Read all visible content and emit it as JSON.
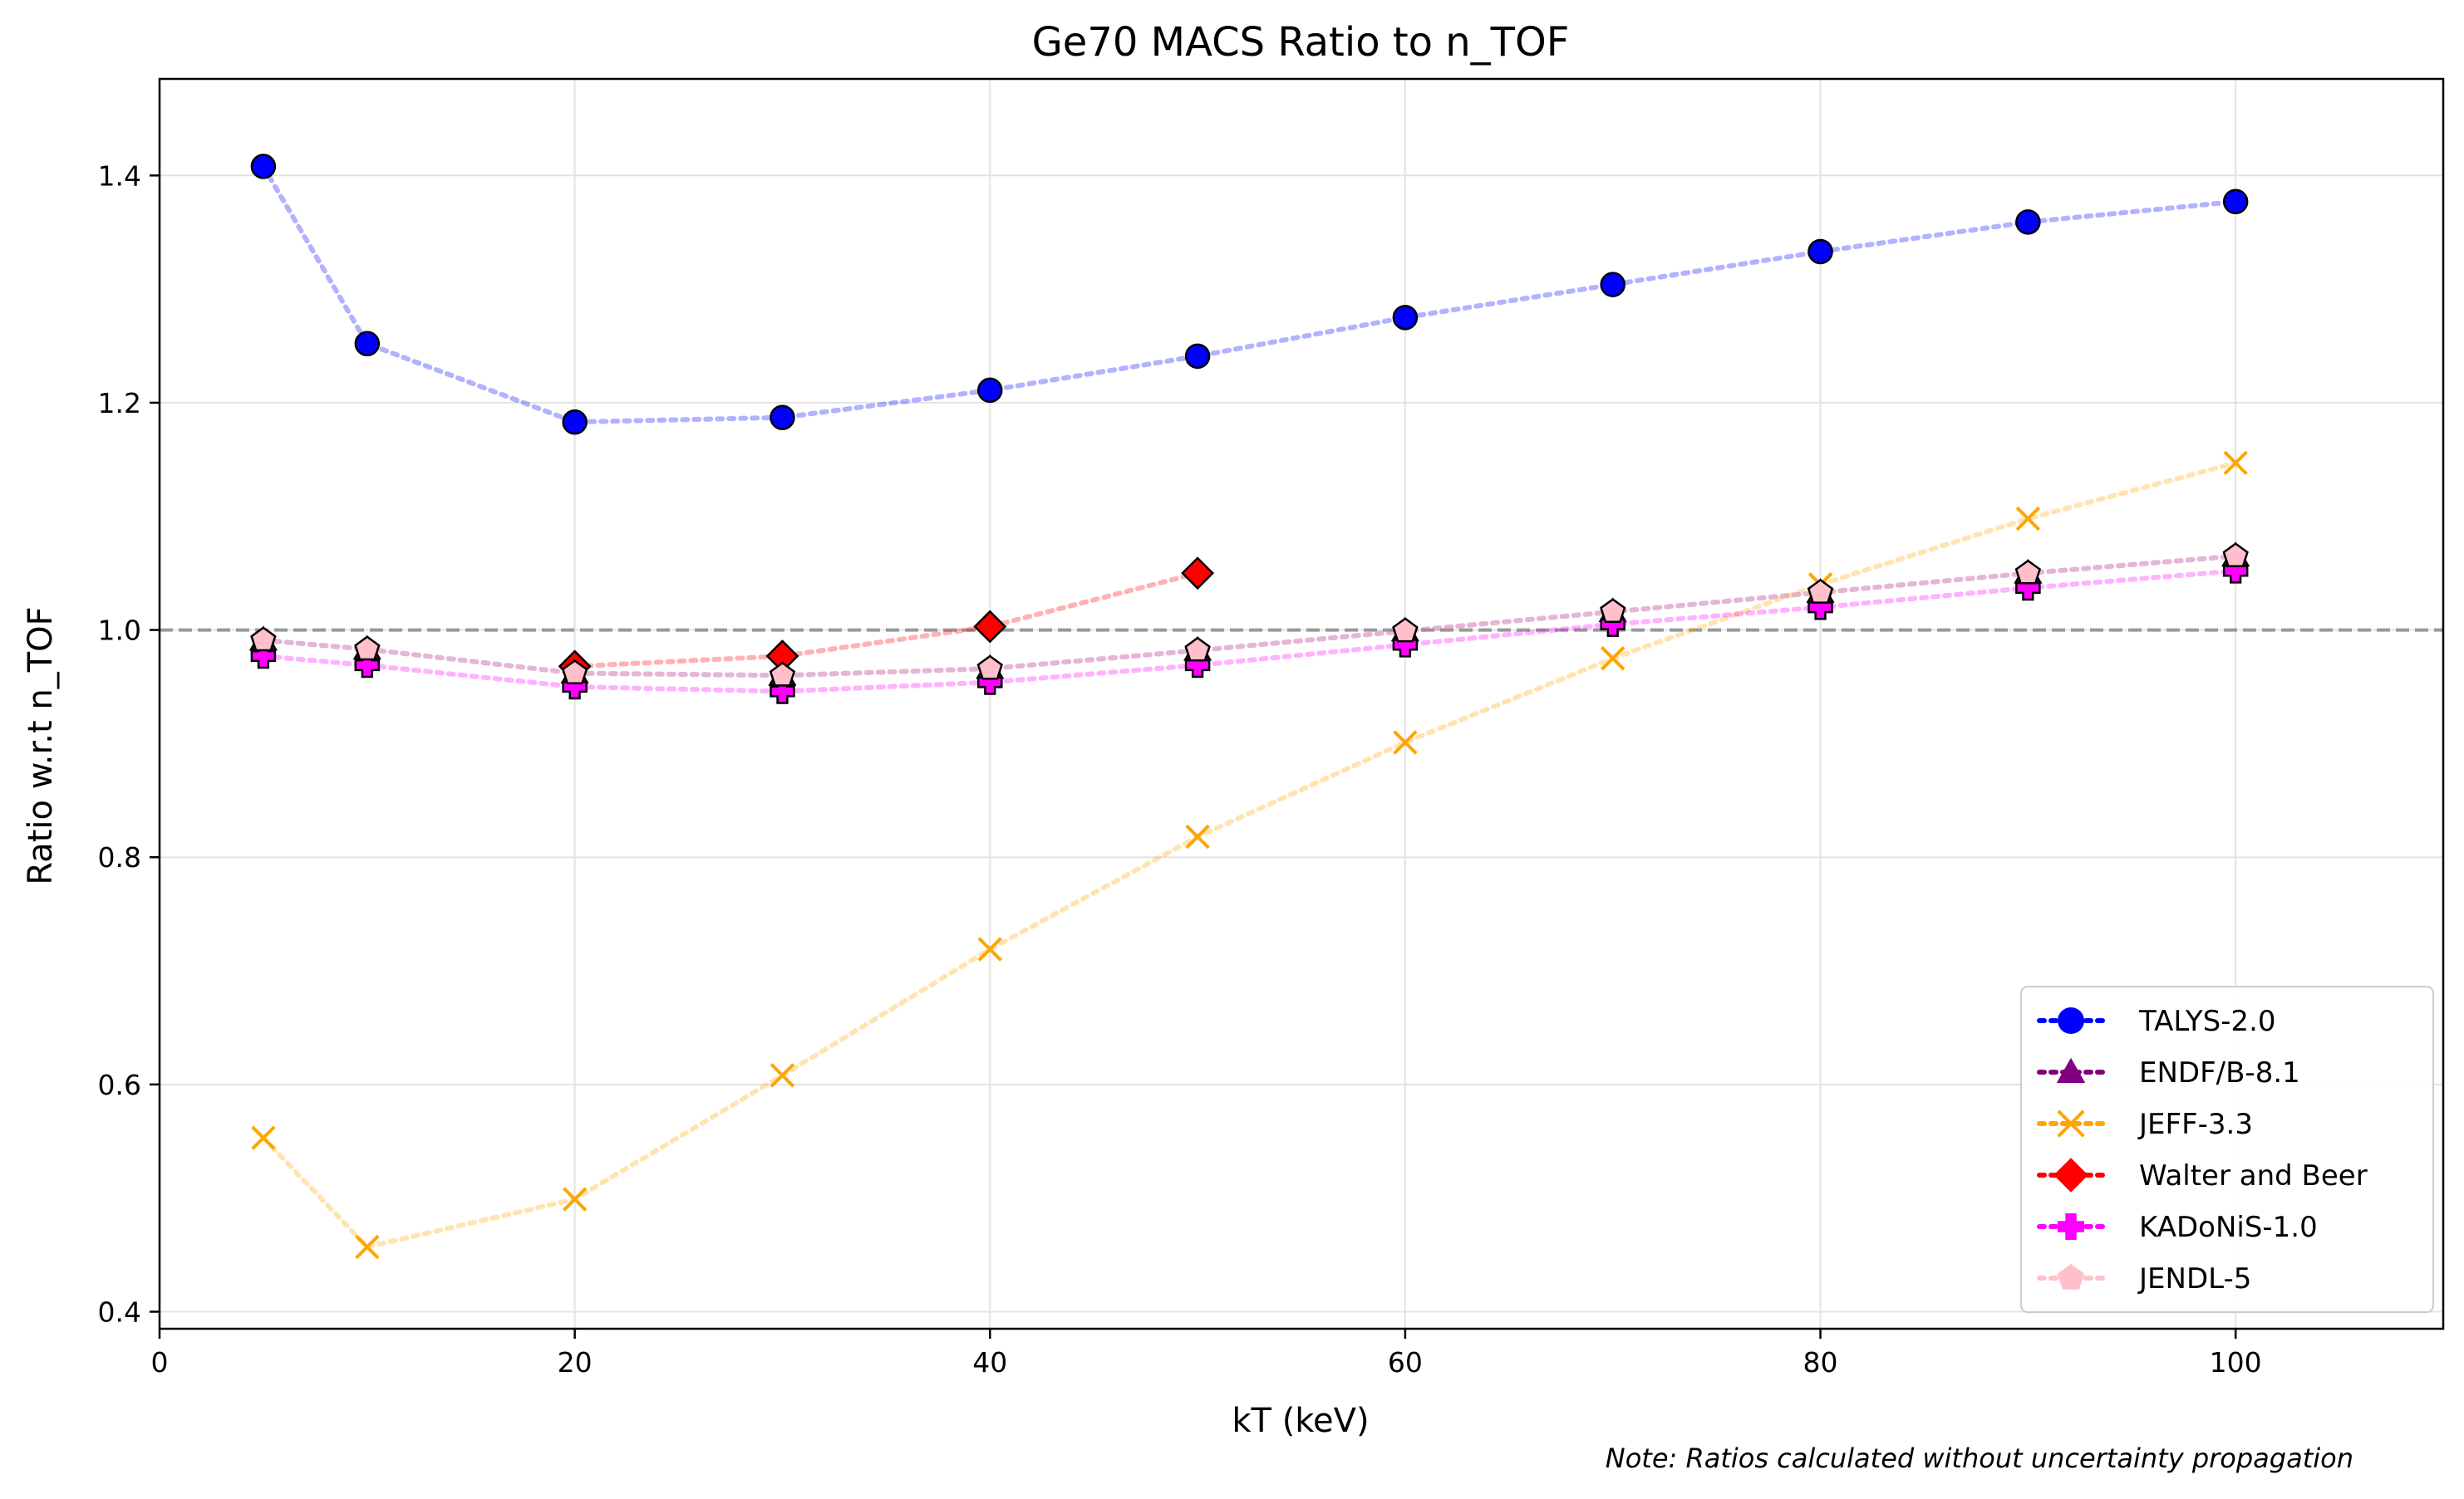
{
  "chart_data": {
    "type": "line",
    "title": "Ge70 MACS Ratio to n_TOF",
    "xlabel": "kT (keV)",
    "ylabel": "Ratio w.r.t n_TOF",
    "xlim": [
      0,
      110
    ],
    "ylim": [
      0.385,
      1.485
    ],
    "xticks": [
      0,
      20,
      40,
      60,
      80,
      100
    ],
    "xtick_labels": [
      "0",
      "20",
      "40",
      "60",
      "80",
      "100"
    ],
    "yticks": [
      0.4,
      0.6,
      0.8,
      1.0,
      1.2,
      1.4
    ],
    "ytick_labels": [
      "0.4",
      "0.6",
      "0.8",
      "1.0",
      "1.2",
      "1.4"
    ],
    "grid": true,
    "reference_line": 1.0,
    "legend_position": "lower-right",
    "note": "Note: Ratios calculated without uncertainty propagation",
    "series": [
      {
        "name": "TALYS-2.0",
        "marker": "circle",
        "color": "#0000ff",
        "x": [
          5,
          10,
          20,
          30,
          40,
          50,
          60,
          70,
          80,
          90,
          100
        ],
        "y": [
          1.408,
          1.252,
          1.183,
          1.187,
          1.211,
          1.241,
          1.275,
          1.304,
          1.333,
          1.359,
          1.377
        ]
      },
      {
        "name": "ENDF/B-8.1",
        "marker": "triangle",
        "color": "#800080",
        "x": [
          5,
          10,
          20,
          30,
          40,
          50,
          60,
          70,
          80,
          90,
          100
        ],
        "y": [
          0.991,
          0.983,
          0.962,
          0.96,
          0.966,
          0.982,
          0.999,
          1.016,
          1.033,
          1.05,
          1.065
        ]
      },
      {
        "name": "JEFF-3.3",
        "marker": "x",
        "color": "#ffa500",
        "x": [
          5,
          10,
          20,
          30,
          40,
          50,
          60,
          70,
          80,
          90,
          100
        ],
        "y": [
          0.553,
          0.457,
          0.499,
          0.608,
          0.719,
          0.818,
          0.901,
          0.975,
          1.04,
          1.098,
          1.147
        ]
      },
      {
        "name": "Walter and Beer",
        "marker": "diamond",
        "color": "#ff0000",
        "x": [
          20,
          30,
          40,
          50
        ],
        "y": [
          0.968,
          0.977,
          1.003,
          1.05
        ]
      },
      {
        "name": "KADoNiS-1.0",
        "marker": "plus",
        "color": "#ff00ff",
        "x": [
          5,
          10,
          20,
          30,
          40,
          50,
          60,
          70,
          80,
          90,
          100
        ],
        "y": [
          0.977,
          0.969,
          0.95,
          0.946,
          0.954,
          0.969,
          0.987,
          1.005,
          1.02,
          1.037,
          1.052
        ]
      },
      {
        "name": "JENDL-5",
        "marker": "pentagon",
        "color": "#ffc0cb",
        "x": [
          5,
          10,
          20,
          30,
          40,
          50,
          60,
          70,
          80,
          90,
          100
        ],
        "y": [
          0.991,
          0.983,
          0.962,
          0.96,
          0.966,
          0.982,
          0.999,
          1.016,
          1.033,
          1.05,
          1.065
        ]
      }
    ]
  }
}
